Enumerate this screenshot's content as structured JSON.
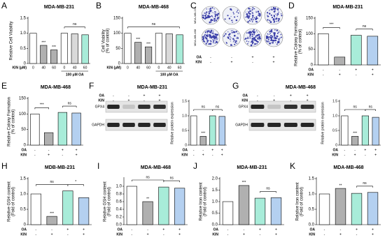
{
  "chart_data": [
    {
      "type": "bar",
      "panel": "A",
      "title": "MDA-MB-231",
      "ylabel": [
        "Relative Cell Viability"
      ],
      "categories": [
        "0",
        "40",
        "60",
        "0",
        "40",
        "60"
      ],
      "xlabel": "KIN (μM)",
      "group": {
        "label": "100 μM OA",
        "bars": [
          3,
          5
        ]
      },
      "values": [
        1.0,
        0.6,
        0.45,
        1.0,
        0.98,
        0.95
      ],
      "colors": [
        "#ffffff",
        "#b0b0b0",
        "#b0b0b0",
        "#ffffff",
        "#d9d9d9",
        "#a8ecd9"
      ],
      "significance": [
        null,
        "***",
        "***",
        null,
        null,
        null
      ],
      "brackets": [
        {
          "label": "ns",
          "bars": [
            3,
            5
          ]
        }
      ],
      "ylim": [
        0,
        1.5
      ],
      "yticks": [
        0,
        0.5,
        {
          "value": 1,
          "label": "1.0"
        },
        1.5
      ]
    },
    {
      "type": "bar",
      "panel": "B",
      "title": "MDA-MB-468",
      "ylabel": [
        "Cell Viability",
        "(% of control)"
      ],
      "categories": [
        "0",
        "40",
        "60",
        "0",
        "40",
        "60"
      ],
      "xlabel": "KIN (μM)",
      "group": {
        "label": "100 μM OA",
        "bars": [
          3,
          5
        ]
      },
      "values": [
        100,
        70,
        55,
        100,
        98,
        95
      ],
      "colors": [
        "#ffffff",
        "#b0b0b0",
        "#b0b0b0",
        "#ffffff",
        "#d9d9d9",
        "#a8ecd9"
      ],
      "significance": [
        null,
        "***",
        "***",
        null,
        null,
        null
      ],
      "brackets": [
        {
          "label": "ns",
          "bars": [
            0,
            5
          ]
        }
      ],
      "ylim": [
        0,
        150
      ],
      "yticks": [
        0,
        50,
        100,
        150
      ]
    },
    {
      "type": "bar",
      "panel": "D",
      "title": "MDA-MB-231",
      "ylabel": [
        "Relative Colony Formation",
        "(% of control)"
      ],
      "values": [
        100,
        25,
        95,
        92
      ],
      "colors": [
        "#ffffff",
        "#b0b0b0",
        "#a8ecd9",
        "#b4d0f0"
      ],
      "conditions": [
        {
          "name": "OA",
          "signs": [
            "-",
            "-",
            "+",
            "+"
          ]
        },
        {
          "name": "KIN",
          "signs": [
            "-",
            "+",
            "-",
            "+"
          ]
        }
      ],
      "significance": [
        null,
        null,
        null,
        null
      ],
      "brackets": [
        {
          "label": "***",
          "bars": [
            0,
            1
          ]
        },
        {
          "label": "ns",
          "bars": [
            2,
            3
          ]
        }
      ],
      "ylim": [
        0,
        150
      ],
      "yticks": [
        0,
        50,
        100,
        150
      ]
    },
    {
      "type": "bar",
      "panel": "E",
      "title": "MDA-MB-468",
      "ylabel": [
        "Relative Colony Formation",
        "(% of control)"
      ],
      "values": [
        100,
        40,
        105,
        103
      ],
      "colors": [
        "#ffffff",
        "#b0b0b0",
        "#a8ecd9",
        "#b4d0f0"
      ],
      "conditions": [
        {
          "name": "OA",
          "signs": [
            "-",
            "-",
            "+",
            "+"
          ]
        },
        {
          "name": "KIN",
          "signs": [
            "-",
            "+",
            "-",
            "+"
          ]
        }
      ],
      "significance": [
        null,
        null,
        null,
        null
      ],
      "brackets": [
        {
          "label": "***",
          "bars": [
            0,
            1
          ]
        },
        {
          "label": "ns",
          "bars": [
            2,
            3
          ]
        }
      ],
      "ylim": [
        0,
        150
      ],
      "yticks": [
        0,
        50,
        100,
        150
      ]
    },
    {
      "type": "bar",
      "ylabel": [
        "Relative protein expression"
      ],
      "values": [
        1.0,
        0.3,
        1.0,
        0.98
      ],
      "colors": [
        "#ffffff",
        "#b0b0b0",
        "#a8ecd9",
        "#b4d0f0"
      ],
      "conditions": [
        {
          "name": "OA",
          "signs": [
            "-",
            "-",
            "+",
            "+"
          ]
        },
        {
          "name": "KIN",
          "signs": [
            "-",
            "+",
            "-",
            "+"
          ]
        }
      ],
      "significance": [
        null,
        "***",
        null,
        null
      ],
      "brackets": [
        {
          "label": "ns",
          "bars": [
            0,
            2
          ]
        },
        {
          "label": "ns",
          "bars": [
            2,
            3
          ]
        }
      ],
      "ylim": [
        0,
        1.5
      ],
      "yticks": [
        0,
        0.5,
        {
          "value": 1,
          "label": "1.0"
        },
        1.5
      ]
    },
    {
      "type": "bar",
      "ylabel": [
        "Relative protein expression"
      ],
      "values": [
        1.0,
        0.3,
        1.0,
        0.95
      ],
      "colors": [
        "#ffffff",
        "#b0b0b0",
        "#a8ecd9",
        "#b4d0f0"
      ],
      "conditions": [
        {
          "name": "OA",
          "signs": [
            "-",
            "-",
            "+",
            "+"
          ]
        },
        {
          "name": "KIN",
          "signs": [
            "-",
            "+",
            "-",
            "+"
          ]
        }
      ],
      "significance": [
        null,
        "***",
        null,
        null
      ],
      "brackets": [
        {
          "label": "ns",
          "bars": [
            0,
            2
          ]
        },
        {
          "label": "ns",
          "bars": [
            2,
            3
          ]
        }
      ],
      "ylim": [
        0,
        1.5
      ],
      "yticks": [
        0,
        0.5,
        {
          "value": 1,
          "label": "1.0"
        },
        1.5
      ]
    },
    {
      "type": "bar",
      "panel": "H",
      "title": "MDB-MB-231",
      "ylabel": [
        "Relative GSH content",
        "(Fold of control)"
      ],
      "values": [
        1.0,
        0.27,
        1.1,
        0.88
      ],
      "colors": [
        "#ffffff",
        "#b0b0b0",
        "#a8ecd9",
        "#b4d0f0"
      ],
      "conditions": [
        {
          "name": "OA",
          "signs": [
            "-",
            "-",
            "+",
            "+"
          ]
        },
        {
          "name": "KIN",
          "signs": [
            "-",
            "+",
            "-",
            "+"
          ]
        }
      ],
      "significance": [
        null,
        "***",
        null,
        null
      ],
      "brackets": [
        {
          "label": "ns",
          "bars": [
            0,
            2
          ]
        },
        {
          "label": "*",
          "bars": [
            2,
            3
          ]
        }
      ],
      "ylim": [
        0,
        1.5
      ],
      "yticks": [
        0,
        0.5,
        {
          "value": 1,
          "label": "1.0"
        },
        1.5
      ]
    },
    {
      "type": "bar",
      "panel": "I",
      "title": "MDA-MB-468",
      "ylabel": [
        "Relative GSH content",
        "(Fold of control)"
      ],
      "values": [
        1.0,
        0.6,
        0.98,
        0.95
      ],
      "colors": [
        "#ffffff",
        "#b0b0b0",
        "#a8ecd9",
        "#b4d0f0"
      ],
      "conditions": [
        {
          "name": "OA",
          "signs": [
            "-",
            "-",
            "+",
            "+"
          ]
        },
        {
          "name": "KIN",
          "signs": [
            "-",
            "+",
            "-",
            "+"
          ]
        }
      ],
      "significance": [
        null,
        "**",
        null,
        null
      ],
      "brackets": [
        {
          "label": "ns",
          "bars": [
            0,
            2
          ]
        },
        {
          "label": "ns",
          "bars": [
            2,
            3
          ]
        }
      ],
      "ylim": [
        0,
        1.2
      ],
      "yticks": [
        {
          "value": 0,
          "label": "0.0"
        },
        0.2,
        0.4,
        0.6,
        0.8,
        {
          "value": 1,
          "label": "1.0"
        }
      ]
    },
    {
      "type": "bar",
      "panel": "J",
      "title": "MDA-MB-231",
      "ylabel": [
        "Relative Iron content",
        "(Fold of control)"
      ],
      "values": [
        1.0,
        1.7,
        1.15,
        1.17
      ],
      "colors": [
        "#ffffff",
        "#b0b0b0",
        "#a8ecd9",
        "#b4d0f0"
      ],
      "conditions": [
        {
          "name": "OA",
          "signs": [
            "-",
            "-",
            "+",
            "+"
          ]
        },
        {
          "name": "KIN",
          "signs": [
            "-",
            "+",
            "-",
            "+"
          ]
        }
      ],
      "significance": [
        null,
        "***",
        null,
        null
      ],
      "brackets": [
        {
          "label": "ns",
          "bars": [
            2,
            3
          ]
        }
      ],
      "ylim": [
        0,
        2
      ],
      "yticks": [
        {
          "value": 0,
          "label": "0.0"
        },
        0.5,
        {
          "value": 1,
          "label": "1.0"
        },
        1.5,
        {
          "value": 2,
          "label": "2.0"
        }
      ]
    },
    {
      "type": "bar",
      "panel": "K",
      "title": "MDA-MB-468",
      "ylabel": [
        "Relative Iron content",
        "(Fold of control)"
      ],
      "values": [
        1.0,
        1.18,
        1.02,
        1.05
      ],
      "colors": [
        "#ffffff",
        "#b0b0b0",
        "#a8ecd9",
        "#b4d0f0"
      ],
      "conditions": [
        {
          "name": "OA",
          "signs": [
            "-",
            "-",
            "+",
            "+"
          ]
        },
        {
          "name": "KIN",
          "signs": [
            "-",
            "+",
            "-",
            "+"
          ]
        }
      ],
      "significance": [
        null,
        "**",
        null,
        null
      ],
      "brackets": [
        {
          "label": "ns",
          "bars": [
            2,
            3
          ]
        }
      ],
      "ylim": [
        0,
        1.5
      ],
      "yticks": [
        {
          "value": 0,
          "label": "0.0"
        },
        0.5,
        {
          "value": 1,
          "label": "1.0"
        },
        1.5
      ]
    }
  ],
  "images": [
    {
      "panel": "C",
      "row_labels": [
        "MDA-MB-231",
        "MDA-MB-468"
      ],
      "conditions": [
        {
          "name": "OA",
          "signs": [
            "-",
            "-",
            "+",
            "+"
          ]
        },
        {
          "name": "KIN",
          "signs": [
            "-",
            "+",
            "-",
            "+"
          ]
        }
      ]
    },
    {
      "panel": "F",
      "title": "MDA-MB-231",
      "bands": [
        "GPX4",
        "GAPDH"
      ],
      "conditions": [
        {
          "name": "OA",
          "signs": [
            "-",
            "-",
            "+",
            "+"
          ]
        },
        {
          "name": "KIN",
          "signs": [
            "-",
            "+",
            "-",
            "+"
          ]
        }
      ]
    },
    {
      "panel": "G",
      "title": "MDA-MB-468",
      "bands": [
        "GPX4",
        "GAPDH"
      ],
      "conditions": [
        {
          "name": "OA",
          "signs": [
            "-",
            "-",
            "+",
            "+"
          ]
        },
        {
          "name": "KIN",
          "signs": [
            "-",
            "+",
            "-",
            "+"
          ]
        }
      ]
    }
  ]
}
